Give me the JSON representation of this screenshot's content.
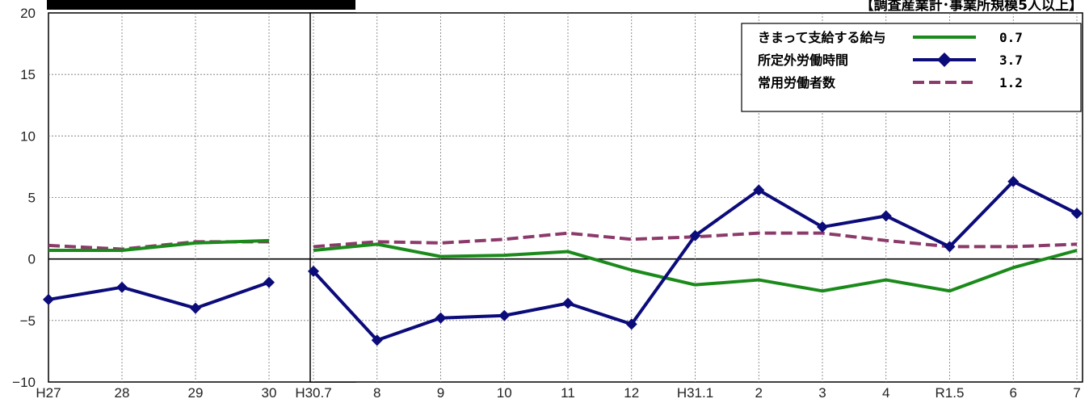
{
  "header_right": "【調査産業計･事業所規模5人以上】",
  "unit_label": "(%)",
  "colors": {
    "wage": "#1a8a1a",
    "overtime": "#0b0b7a",
    "employees": "#8c3a6a"
  },
  "legend": {
    "items": [
      {
        "label": "きまって支給する給与",
        "value": "0.7"
      },
      {
        "label": "所定外労働時間",
        "value": "3.7"
      },
      {
        "label": "常用労働者数",
        "value": "1.2"
      }
    ]
  },
  "chart_data": [
    {
      "type": "line",
      "x": [
        "H27",
        "28",
        "29",
        "30"
      ],
      "ylim": [
        -10,
        20
      ],
      "yticks": [
        -10,
        -5,
        0,
        5,
        10,
        15,
        20
      ],
      "grid": true,
      "series": [
        {
          "name": "きまって支給する給与",
          "values": [
            0.7,
            0.7,
            1.3,
            1.5
          ]
        },
        {
          "name": "所定外労働時間",
          "values": [
            -3.3,
            -2.3,
            -4.0,
            -1.9
          ]
        },
        {
          "name": "常用労働者数",
          "values": [
            1.1,
            0.8,
            1.4,
            1.4
          ]
        }
      ]
    },
    {
      "type": "line",
      "x": [
        "H30.7",
        "8",
        "9",
        "10",
        "11",
        "12",
        "H31.1",
        "2",
        "3",
        "4",
        "R1.5",
        "6",
        "7"
      ],
      "ylim": [
        -10,
        20
      ],
      "grid": true,
      "legend_position": "top-right",
      "series": [
        {
          "name": "きまって支給する給与",
          "values": [
            0.7,
            1.2,
            0.2,
            0.3,
            0.6,
            -0.9,
            -2.1,
            -1.7,
            -2.6,
            -1.7,
            -2.6,
            -0.7,
            0.7
          ]
        },
        {
          "name": "所定外労働時間",
          "values": [
            -1.0,
            -6.6,
            -4.8,
            -4.6,
            -3.6,
            -5.3,
            1.9,
            5.6,
            2.6,
            3.5,
            1.0,
            6.3,
            3.7
          ]
        },
        {
          "name": "常用労働者数",
          "values": [
            1.0,
            1.4,
            1.3,
            1.6,
            2.1,
            1.6,
            1.8,
            2.1,
            2.1,
            1.5,
            1.0,
            1.0,
            1.2
          ]
        }
      ]
    }
  ]
}
